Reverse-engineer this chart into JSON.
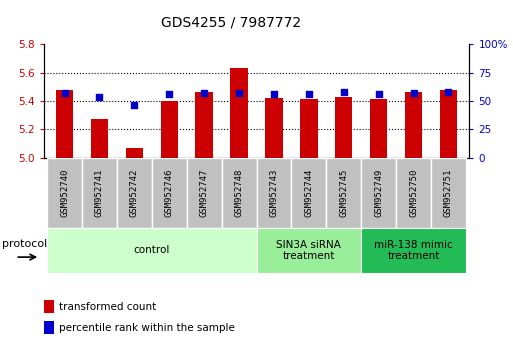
{
  "title": "GDS4255 / 7987772",
  "samples": [
    "GSM952740",
    "GSM952741",
    "GSM952742",
    "GSM952746",
    "GSM952747",
    "GSM952748",
    "GSM952743",
    "GSM952744",
    "GSM952745",
    "GSM952749",
    "GSM952750",
    "GSM952751"
  ],
  "transformed_count": [
    5.48,
    5.27,
    5.07,
    5.4,
    5.46,
    5.63,
    5.42,
    5.41,
    5.43,
    5.41,
    5.46,
    5.48
  ],
  "percentile_rank": [
    57,
    53,
    46,
    56,
    57,
    57,
    56,
    56,
    58,
    56,
    57,
    58
  ],
  "bar_color": "#cc0000",
  "dot_color": "#0000cc",
  "ylim_left": [
    5.0,
    5.8
  ],
  "ylim_right": [
    0,
    100
  ],
  "yticks_left": [
    5.0,
    5.2,
    5.4,
    5.6,
    5.8
  ],
  "yticks_right": [
    0,
    25,
    50,
    75,
    100
  ],
  "ytick_labels_right": [
    "0",
    "25",
    "50",
    "75",
    "100%"
  ],
  "groups": [
    {
      "label": "control",
      "start": 0,
      "end": 6,
      "color": "#ccffcc"
    },
    {
      "label": "SIN3A siRNA\ntreatment",
      "start": 6,
      "end": 9,
      "color": "#99ee99"
    },
    {
      "label": "miR-138 mimic\ntreatment",
      "start": 9,
      "end": 12,
      "color": "#22bb55"
    }
  ],
  "protocol_label": "protocol",
  "legend_items": [
    {
      "label": "transformed count",
      "color": "#cc0000"
    },
    {
      "label": "percentile rank within the sample",
      "color": "#0000cc"
    }
  ],
  "grid_color": "#000000",
  "background_color": "#ffffff",
  "sample_label_bg": "#c0c0c0",
  "sample_label_border": "#ffffff",
  "bar_width": 0.5,
  "title_fontsize": 10,
  "tick_fontsize": 7.5,
  "sample_fontsize": 6.5,
  "group_fontsize": 7.5,
  "legend_fontsize": 7.5,
  "protocol_fontsize": 8
}
